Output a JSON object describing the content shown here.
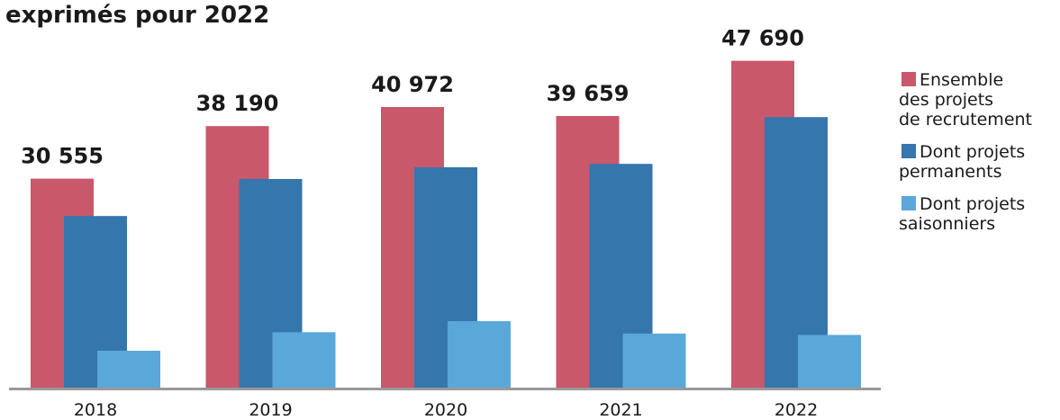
{
  "chart_data": {
    "type": "bar",
    "title": "exprimés pour 2022",
    "categories": [
      "2018",
      "2019",
      "2020",
      "2021",
      "2022"
    ],
    "series": [
      {
        "name": "Ensemble des projets de recrutement",
        "color": "#c9586a",
        "values": [
          30555,
          38190,
          40972,
          39659,
          47690
        ]
      },
      {
        "name": "Dont projets permanents",
        "color": "#3576ad",
        "values": [
          25100,
          30500,
          32200,
          32700,
          39500
        ]
      },
      {
        "name": "Dont projets saisonniers",
        "color": "#5aa7da",
        "values": [
          5500,
          8200,
          9800,
          8000,
          7800
        ]
      }
    ],
    "data_labels": [
      "30 555",
      "38 190",
      "40 972",
      "39 659",
      "47 690"
    ],
    "ylim": [
      0,
      50000
    ],
    "grid": false,
    "legend_position": "right",
    "legend": [
      {
        "label": "Ensemble\ndes projets\nde recrutement",
        "color": "#c9586a"
      },
      {
        "label": "Dont projets\npermanents",
        "color": "#3576ad"
      },
      {
        "label": "Dont projets\nsaisonniers",
        "color": "#5aa7da"
      }
    ],
    "axis_color": "#999999"
  }
}
